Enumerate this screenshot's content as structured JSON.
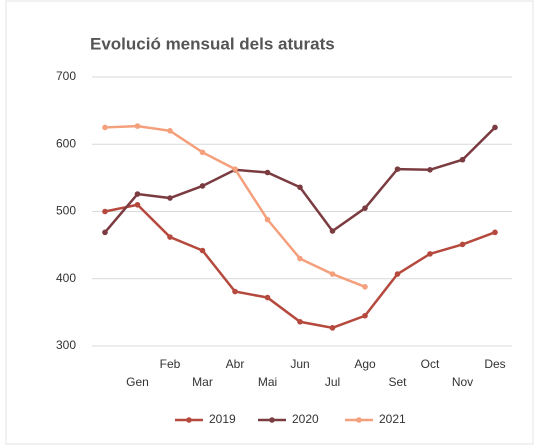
{
  "chart_data": {
    "type": "line",
    "title": "Evolució mensual dels aturats",
    "categories": [
      null,
      "Gen",
      "Feb",
      "Mar",
      "Abr",
      "Mai",
      "Jun",
      "Jul",
      "Ago",
      "Set",
      "Oct",
      "Nov",
      "Des"
    ],
    "series": [
      {
        "name": "2019",
        "color": "#b5493d",
        "values": [
          500,
          510,
          462,
          442,
          381,
          372,
          336,
          327,
          345,
          407,
          437,
          451,
          469
        ]
      },
      {
        "name": "2020",
        "color": "#7b3c41",
        "values": [
          469,
          526,
          520,
          538,
          562,
          558,
          536,
          471,
          505,
          563,
          562,
          577,
          625
        ]
      },
      {
        "name": "2021",
        "color": "#f4a07c",
        "values": [
          625,
          627,
          620,
          588,
          563,
          488,
          430,
          407,
          388,
          null,
          null,
          null,
          null
        ]
      }
    ],
    "ylim": [
      300,
      700
    ],
    "yticks": [
      300,
      400,
      500,
      600,
      700
    ],
    "grid": true,
    "legend": "bottom"
  }
}
